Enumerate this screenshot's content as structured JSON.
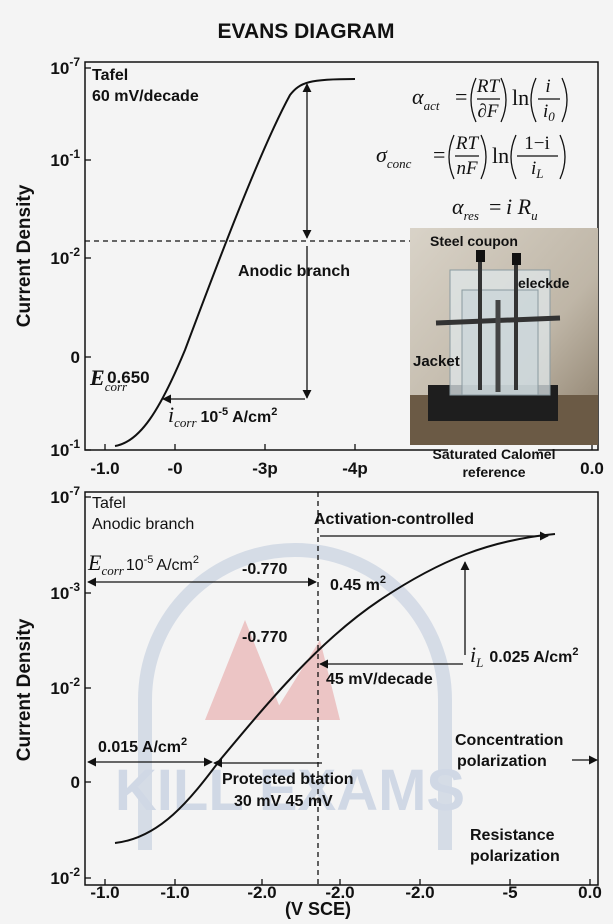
{
  "title": "EVANS DIAGRAM",
  "top_panel": {
    "y_axis_label": "Current Density",
    "y_ticks": [
      {
        "base": "10",
        "exp": "-7"
      },
      {
        "base": "10",
        "exp": "-1"
      },
      {
        "base": "10",
        "exp": "-2"
      },
      {
        "base": "0"
      },
      {
        "base": "10",
        "exp": "-1"
      }
    ],
    "x_ticks": [
      "-1.0",
      "-0",
      "-3p",
      "-4p",
      "0.0"
    ],
    "tafel_label": [
      "Tafel",
      "60 mV/decade"
    ],
    "anodic_label": "Anodic branch",
    "e_corr": {
      "symbol": "E",
      "subscript": "corr",
      "value": "0.650"
    },
    "i_corr": {
      "symbol": "i",
      "subscript": "corr",
      "value_base": "10",
      "value_exp": "-5",
      "unit": "A/cm",
      "unit_exp": "2"
    },
    "equations": [
      {
        "lhs": "α",
        "lhs_sub": "act",
        "eq": "=",
        "frac1_num": "RT",
        "frac1_den": "∂F",
        "func": "ln",
        "frac2_num": "i",
        "frac2_den": "i",
        "frac2_den_sub": "0"
      },
      {
        "lhs": "σ",
        "lhs_sub": "conc",
        "eq": "=",
        "frac1_num": "RT",
        "frac1_den": "nF",
        "func": "ln",
        "frac2_num": "1−i",
        "frac2_den": "i",
        "frac2_den_sub": "L"
      },
      {
        "lhs": "α",
        "lhs_sub": "res",
        "eq": "=",
        "rhs": "i R",
        "rhs_sub": "u"
      }
    ],
    "photo_labels": {
      "steel": "Steel coupon",
      "electrode": "eleckde",
      "jacket": "Jacket",
      "reference": [
        "Saturated Calomel",
        "reference"
      ]
    }
  },
  "bottom_panel": {
    "y_axis_label": "Current Density",
    "y_ticks": [
      {
        "base": "10",
        "exp": "-7"
      },
      {
        "base": "10",
        "exp": "-3"
      },
      {
        "base": "10",
        "exp": "-2"
      },
      {
        "base": "0"
      },
      {
        "base": "10",
        "exp": "-2"
      }
    ],
    "x_ticks": [
      "-1.0",
      "-1.0",
      "-2.0",
      "-2.0",
      "-2.0",
      "-5",
      "0.0"
    ],
    "x_axis_label": "(V SCE)",
    "tafel_label": [
      "Tafel",
      "Anodic branch"
    ],
    "activation_label": "Activation-controlled",
    "e_corr": {
      "symbol": "E",
      "subscript": "corr",
      "value_base": "10",
      "value_exp": "-5",
      "unit": "A/cm",
      "unit_exp": "2"
    },
    "potential_labels": [
      "-0.770",
      "-0.770"
    ],
    "area_label": {
      "text": "0.45 m",
      "exp": "2"
    },
    "i_l": {
      "symbol": "i",
      "subscript": "L",
      "value": "0.025 A/cm",
      "exp": "2"
    },
    "slope_label": "45 mV/decade",
    "current_label": {
      "text": "0.015 A/cm",
      "exp": "2"
    },
    "protection_label": [
      "Protected btation",
      "30 mV 45 mV"
    ],
    "concentration_label": [
      "Concentration",
      "polarization"
    ],
    "resistance_label": [
      "Resistance",
      "polarization"
    ]
  },
  "watermark": "KILL EXAMS"
}
